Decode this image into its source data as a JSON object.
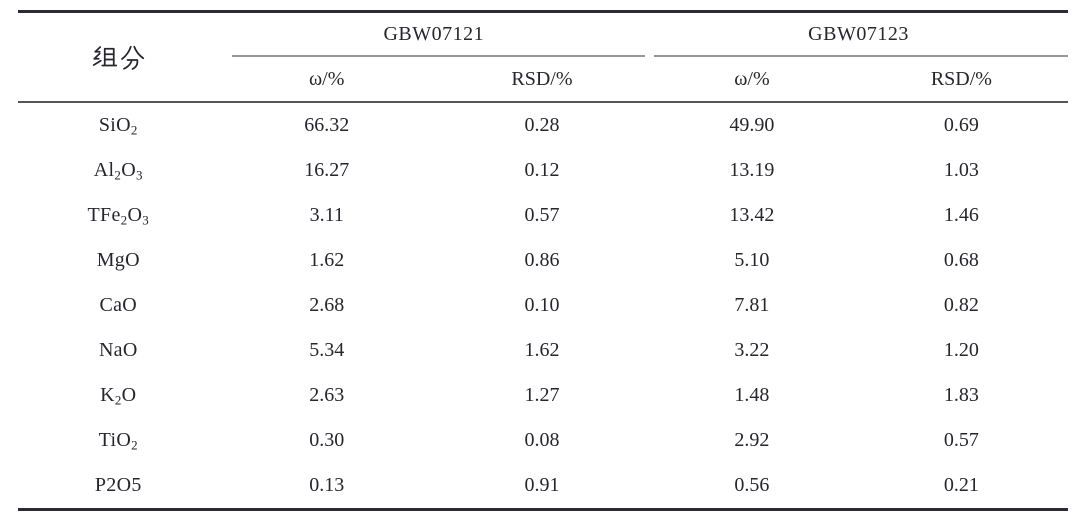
{
  "chart_data": {
    "type": "table",
    "component_header": "组分",
    "groups": [
      {
        "label": "GBW07121",
        "subheaders": [
          "ω/%",
          "RSD/%"
        ]
      },
      {
        "label": "GBW07123",
        "subheaders": [
          "ω/%",
          "RSD/%"
        ]
      }
    ],
    "rows": [
      {
        "formula": "SiO_2",
        "values": [
          "66.32",
          "0.28",
          "49.90",
          "0.69"
        ]
      },
      {
        "formula": "Al_2O_3",
        "values": [
          "16.27",
          "0.12",
          "13.19",
          "1.03"
        ]
      },
      {
        "formula": "TFe_2O_3",
        "values": [
          "3.11",
          "0.57",
          "13.42",
          "1.46"
        ]
      },
      {
        "formula": "MgO",
        "values": [
          "1.62",
          "0.86",
          "5.10",
          "0.68"
        ]
      },
      {
        "formula": "CaO",
        "values": [
          "2.68",
          "0.10",
          "7.81",
          "0.82"
        ]
      },
      {
        "formula": "NaO",
        "values": [
          "5.34",
          "1.62",
          "3.22",
          "1.20"
        ]
      },
      {
        "formula": "K_2O",
        "values": [
          "2.63",
          "1.27",
          "1.48",
          "1.83"
        ]
      },
      {
        "formula": "TiO_2",
        "values": [
          "0.30",
          "0.08",
          "2.92",
          "0.57"
        ]
      },
      {
        "formula": "P2O5",
        "values": [
          "0.13",
          "0.91",
          "0.56",
          "0.21"
        ]
      }
    ],
    "layout": {
      "grid": "horizontal rules only (three-line table)",
      "legend": "none"
    }
  },
  "colors": {
    "background": "#ffffff",
    "text": "#26262e",
    "rule_heavy": "#2b2b33",
    "rule_header": "#55555c",
    "rule_spanner": "#97979b"
  }
}
